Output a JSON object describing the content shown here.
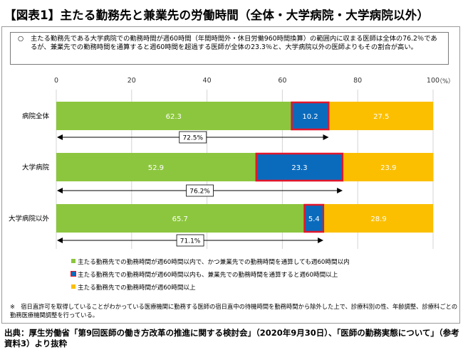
{
  "title": "【図表1】主たる勤務先と兼業先の労働時間（全体・大学病院・大学病院以外）",
  "note": {
    "bullet": "○",
    "text": "主たる勤務先である大学病院での勤務時間が週60時間（年間時間外・休日労働960時間換算）の範囲内に収まる医師は全体の76.2％であるが、兼業先での勤務時間を通算すると週60時間を超過する医師が全体の23.3％と、大学病院以外の医師よりもその割合が高い。"
  },
  "colors": {
    "green": "#8cc63e",
    "blue": "#0a6bbd",
    "orange": "#fbbf00",
    "highlight": "#e2162b"
  },
  "chart_data": {
    "type": "bar",
    "orientation": "horizontal",
    "stacked": true,
    "xlim": [
      0,
      100
    ],
    "x_ticks": [
      "0",
      "20",
      "40",
      "60",
      "80",
      "100"
    ],
    "unit_label": "（%）",
    "categories": [
      "病院全体",
      "大学病院",
      "大学病院以外"
    ],
    "series": [
      {
        "name": "主たる勤務先での勤務時間が週60時間以内で、かつ兼業先での勤務時間を通算しても週60時間以内",
        "color": "#8cc63e",
        "values": [
          62.3,
          52.9,
          65.7
        ]
      },
      {
        "name": "主たる勤務先での勤務時間が週60時間以内も、兼業先での勤務時間を通算すると週60時間以上",
        "color": "#0a6bbd",
        "values": [
          10.2,
          23.3,
          5.4
        ],
        "highlighted": true
      },
      {
        "name": "主たる勤務先での勤務時間が週60時間以上",
        "color": "#fbbf00",
        "values": [
          27.5,
          23.9,
          28.9
        ]
      }
    ],
    "data_labels": [
      [
        "62.3",
        "10.2",
        "27.5"
      ],
      [
        "52.9",
        "23.3",
        "23.9"
      ],
      [
        "65.7",
        "5.4",
        "28.9"
      ]
    ],
    "bracket_values": [
      72.5,
      76.2,
      71.1
    ],
    "bracket_labels": [
      "72.5%",
      "76.2%",
      "71.1%"
    ]
  },
  "footnote": "※　宿日直許可を取得していることがわかっている医療機関に勤務する医師の宿日直中の待機時間を勤務時間から除外した上で、診療科別の性、年齢調整、診療科ごとの勤務医療機関調整を行っている。",
  "source": "出典：厚生労働省「第9回医師の働き方改革の推進に関する検討会」（2020年9月30日）、「医師の勤務実態について」（参考資料3）より抜粋"
}
